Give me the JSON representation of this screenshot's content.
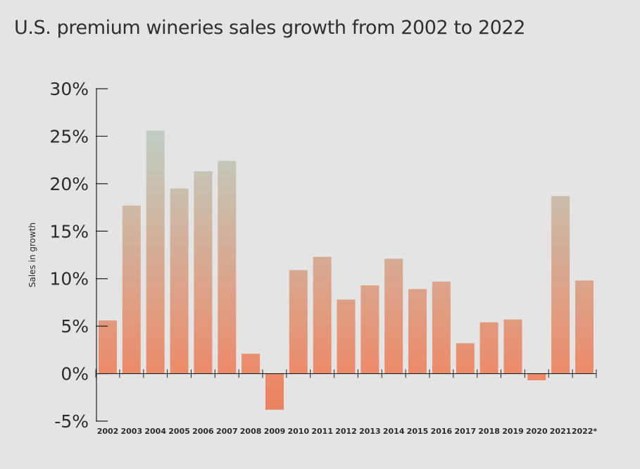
{
  "chart_data": {
    "type": "bar",
    "title": "U.S. premium wineries sales growth from 2002 to 2022",
    "ylabel": "Sales in growth",
    "xlabel": "",
    "categories": [
      "2002",
      "2003",
      "2004",
      "2005",
      "2006",
      "2007",
      "2008",
      "2009",
      "2010",
      "2011",
      "2012",
      "2013",
      "2014",
      "2015",
      "2016",
      "2017",
      "2018",
      "2019",
      "2020",
      "2021",
      "2022*"
    ],
    "values": [
      5.6,
      17.7,
      25.6,
      19.5,
      21.3,
      22.4,
      2.1,
      -3.8,
      10.9,
      12.3,
      7.8,
      9.3,
      12.1,
      8.9,
      9.7,
      3.2,
      5.4,
      5.7,
      -0.7,
      18.7,
      9.8
    ],
    "ylim": [
      -5,
      30
    ],
    "yticks": [
      -5,
      0,
      5,
      10,
      15,
      20,
      25,
      30
    ],
    "ytick_suffix": "%",
    "grid": false,
    "colors": {
      "bar_top": "#b6dcd6",
      "bar_bottom": "#ec8b6a",
      "axis": "#222222",
      "background": "#e4e4e4"
    }
  }
}
